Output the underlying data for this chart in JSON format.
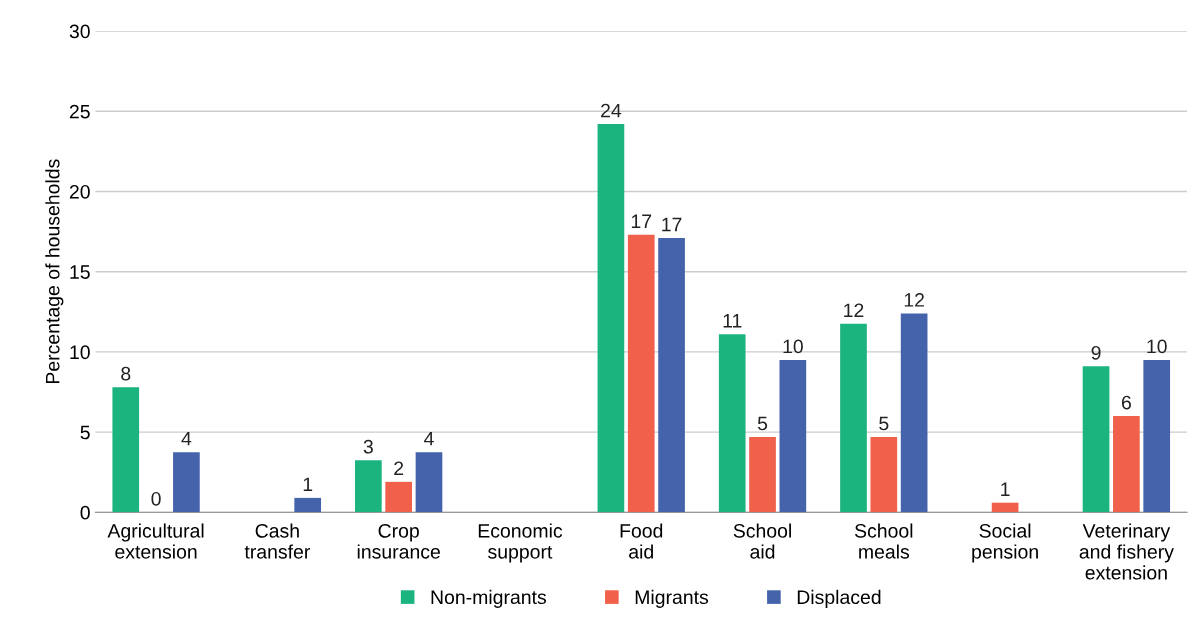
{
  "chart_data": {
    "type": "bar",
    "ylabel": "Percentage of households",
    "categories": [
      "Agricultural\nextension",
      "Cash\ntransfer",
      "Crop\ninsurance",
      "Economic\nsupport",
      "Food\naid",
      "School\naid",
      "School\nmeals",
      "Social\npension",
      "Veterinary\nand fishery\nextension"
    ],
    "series": [
      {
        "name": "Non-migrants",
        "color": "#1bb37e",
        "values": [
          7.8,
          null,
          3.25,
          null,
          24.2,
          11.1,
          11.75,
          null,
          9.1
        ],
        "value_labels": [
          "8",
          null,
          "3",
          null,
          "24",
          "11",
          "12",
          null,
          "9"
        ]
      },
      {
        "name": "Migrants",
        "color": "#f0604a",
        "values": [
          0,
          null,
          1.9,
          null,
          17.3,
          4.7,
          4.7,
          0.6,
          6.0
        ],
        "value_labels": [
          "0",
          null,
          "2",
          null,
          "17",
          "5",
          "5",
          "1",
          "6"
        ]
      },
      {
        "name": "Displaced",
        "color": "#4563ab",
        "values": [
          3.75,
          0.9,
          3.75,
          null,
          17.1,
          9.5,
          12.4,
          null,
          9.5
        ],
        "value_labels": [
          "4",
          "1",
          "4",
          null,
          "17",
          "10",
          "12",
          null,
          "10"
        ]
      }
    ],
    "ylim": [
      0,
      30
    ],
    "yticks": [
      0,
      5,
      10,
      15,
      20,
      25,
      30
    ],
    "grid": "y",
    "legend": "bottom"
  }
}
